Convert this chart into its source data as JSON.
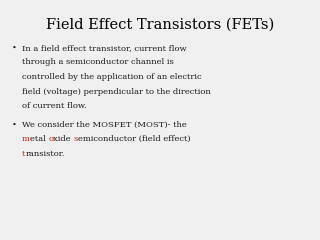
{
  "title": "Field Effect Transistors (FETs)",
  "background_color": "#f0f0f0",
  "title_fontsize": 10.5,
  "body_fontsize": 6.0,
  "title_color": "#000000",
  "body_color": "#1a1a1a",
  "red_color": "#cc2200",
  "bullet1_lines": [
    "In a field effect transistor, current flow",
    "through a semiconductor channel is",
    "controlled by the application of an electric",
    "field (voltage) perpendicular to the direction",
    "of current flow."
  ],
  "bullet2_line1": "We consider the MOSFET (MOST)- the",
  "bullet2_line2_parts": [
    {
      "text": "m",
      "color": "#cc2200"
    },
    {
      "text": "etal ",
      "color": "#1a1a1a"
    },
    {
      "text": "o",
      "color": "#cc2200"
    },
    {
      "text": "xide ",
      "color": "#1a1a1a"
    },
    {
      "text": "s",
      "color": "#cc2200"
    },
    {
      "text": "emiconductor (field effect)",
      "color": "#1a1a1a"
    }
  ],
  "bullet2_line3_parts": [
    {
      "text": "t",
      "color": "#cc2200"
    },
    {
      "text": "ransistor.",
      "color": "#1a1a1a"
    }
  ],
  "bullet_char": "•"
}
